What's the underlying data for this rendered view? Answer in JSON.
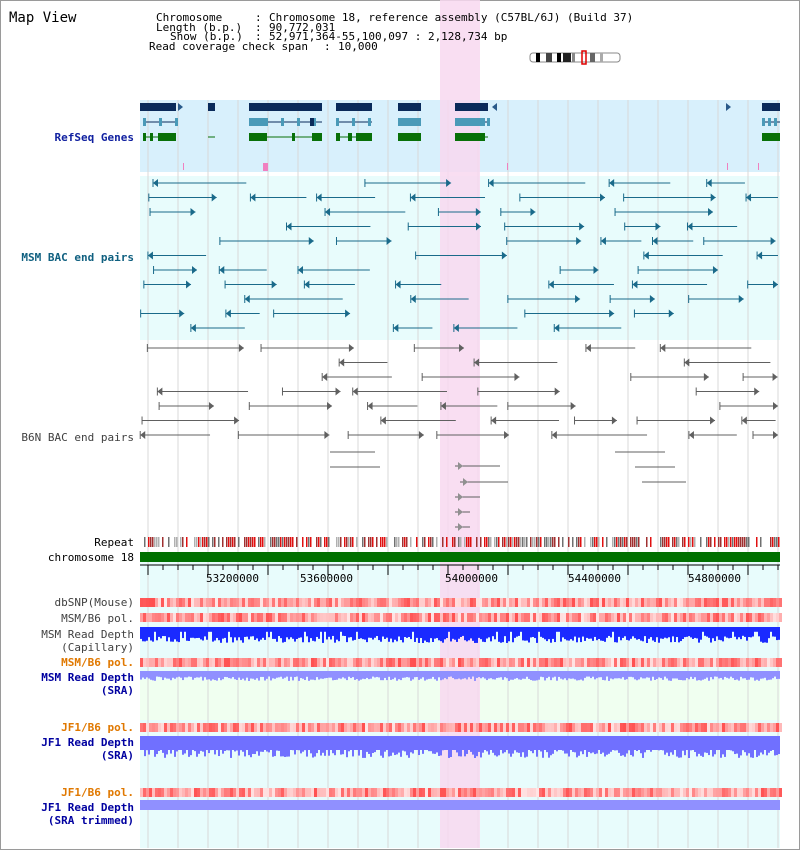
{
  "title": "Map View",
  "info": {
    "chromosome_key": "Chromosome",
    "chromosome_val": "Chromosome 18, reference assembly (C57BL/6J) (Build 37)",
    "length_key": "Length (b.p.)",
    "length_val": "90,772,031",
    "show_key": "Show (b.p.)",
    "show_val": "52,971,364-55,100,097 : 2,128,734 bp",
    "coverage_key": "Read coverage check span",
    "coverage_val": "10,000"
  },
  "tracks": {
    "refseq": "RefSeq Genes",
    "msm_bac": "MSM BAC end pairs",
    "b6n_bac": "B6N BAC end pairs",
    "repeat": "Repeat",
    "chromosome": "chromosome 18",
    "dbsnp": "dbSNP(Mouse)",
    "msm_b6_pol": "MSM/B6 pol.",
    "msm_depth_cap_1": "MSM Read Depth",
    "msm_depth_cap_2": "(Capillary)",
    "msm_b6_pol_sra": "MSM/B6 pol.",
    "msm_depth_sra_1": "MSM Read Depth",
    "msm_depth_sra_2": "(SRA)",
    "jf1_b6_pol": "JF1/B6 pol.",
    "jf1_depth_1": "JF1 Read Depth",
    "jf1_depth_2": "(SRA)",
    "jf1_b6_pol_2": "JF1/B6 pol.",
    "jf1_trim_1": "JF1 Read Depth",
    "jf1_trim_2": "(SRA trimmed)"
  },
  "axis_ticks": [
    "53200000",
    "53600000",
    "54000000",
    "54400000",
    "54800000"
  ],
  "colors": {
    "highlight": "#f8d8f0",
    "refseq_bg": "#d8f0fc",
    "bac_bg": "#e8fcfc",
    "gene_navy": "#0a2a5a",
    "gene_teal": "#4a9ab8",
    "gene_green": "#087008",
    "chromosome_green": "#007000",
    "depth_blue": "#2030ff",
    "depth_light": "#8888ff"
  }
}
